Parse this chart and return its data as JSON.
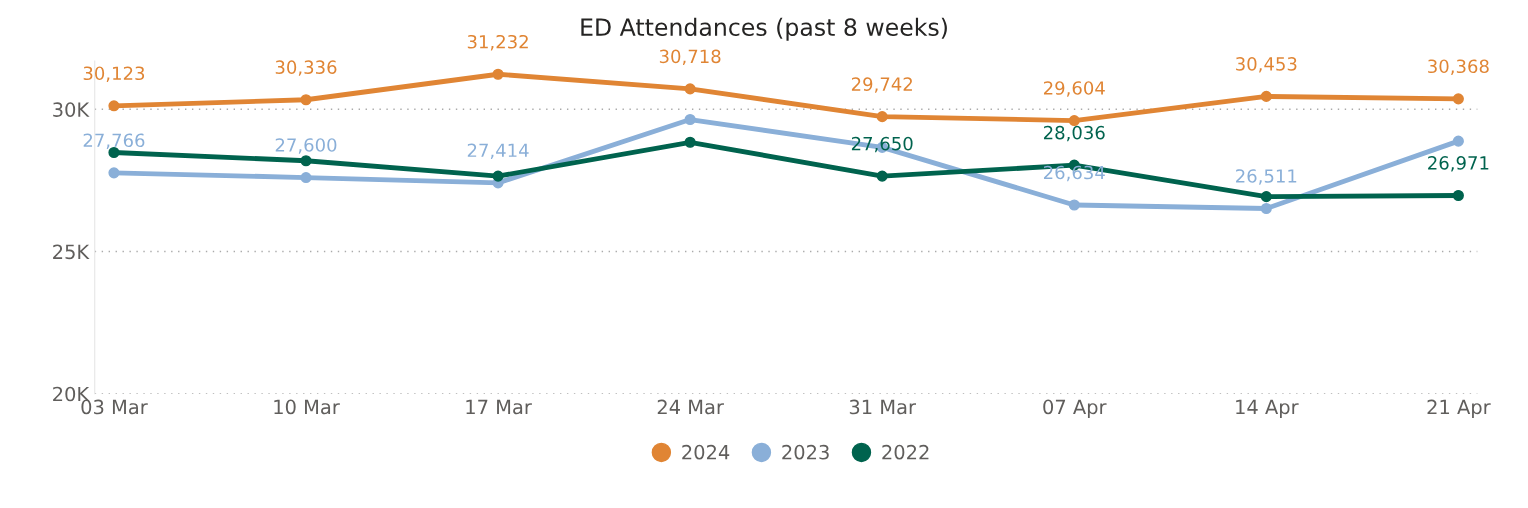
{
  "chart_data": {
    "type": "line",
    "title": "ED Attendances (past 8 weeks)",
    "categories": [
      "03 Mar",
      "10 Mar",
      "17 Mar",
      "24 Mar",
      "31 Mar",
      "07 Apr",
      "14 Apr",
      "21 Apr"
    ],
    "series": [
      {
        "name": "2024",
        "color": "#e08534",
        "values": [
          30123,
          30336,
          31232,
          30718,
          29742,
          29604,
          30453,
          30368
        ],
        "value_labels": [
          "30,123",
          "30,336",
          "31,232",
          "30,718",
          "29,742",
          "29,604",
          "30,453",
          "30,368"
        ]
      },
      {
        "name": "2023",
        "color": "#8aafd8",
        "values": [
          27766,
          27600,
          27414,
          29640,
          28660,
          26634,
          26511,
          28880
        ],
        "value_labels": [
          "27,766",
          "27,600",
          "27,414",
          null,
          null,
          "26,634",
          "26,511",
          null
        ]
      },
      {
        "name": "2022",
        "color": "#00634e",
        "values": [
          28480,
          28190,
          27650,
          28840,
          27650,
          28036,
          26930,
          26971
        ],
        "value_labels": [
          null,
          null,
          null,
          null,
          "27,650",
          "28,036",
          null,
          "26,971"
        ]
      }
    ],
    "ylim": [
      20000,
      31700
    ],
    "yticks": [
      {
        "value": 20000,
        "label": "20K"
      },
      {
        "value": 25000,
        "label": "25K"
      },
      {
        "value": 30000,
        "label": "30K"
      }
    ],
    "grid": "y",
    "legend": "bottom",
    "marker": "circle",
    "line_style": "solid"
  }
}
